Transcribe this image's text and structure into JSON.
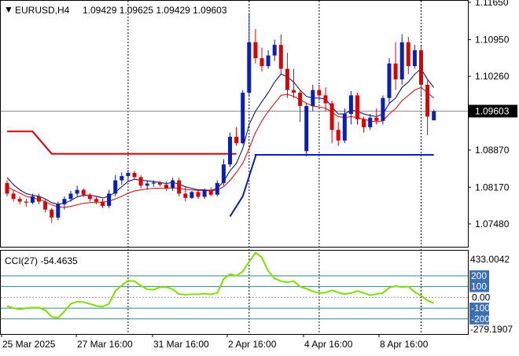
{
  "header": {
    "symbol_label": "EURUSD,H4",
    "ohlc": "1.09429 1.09625 1.09429 1.09603",
    "menu_arrow": "▼"
  },
  "colors": {
    "bull": "#0b1fb0",
    "bear": "#e00000",
    "ma_fast": "#000080",
    "ma_slow": "#e00000",
    "stop_red": "#e00000",
    "stop_blue": "#0b1fb0",
    "cci": "#7fe000",
    "level_line": "#2b8a8a",
    "level_label_bg": "#3a6fb3",
    "grid": "#000000"
  },
  "chart_data": [
    {
      "name": "price",
      "type": "candlestick",
      "y_axis_ticks": [
        "1.11650",
        "1.10950",
        "1.10260",
        "1.09603",
        "1.08870",
        "1.08170",
        "1.07480"
      ],
      "current_price_label": "1.09603",
      "ylim": [
        1.0705,
        1.1168
      ],
      "x_axis_labels": [
        "25 Mar 2025",
        "27 Mar 16:00",
        "31 Mar 16:00",
        "2 Apr 16:00",
        "4 Apr 16:00",
        "8 Apr 16:00"
      ],
      "candles": [
        [
          1.0825,
          1.083,
          1.08,
          1.0805
        ],
        [
          1.0805,
          1.0812,
          1.079,
          1.0795
        ],
        [
          1.0795,
          1.08,
          1.0785,
          1.079
        ],
        [
          1.079,
          1.0795,
          1.078,
          1.0788
        ],
        [
          1.0788,
          1.0805,
          1.0785,
          1.08
        ],
        [
          1.08,
          1.0805,
          1.0785,
          1.079
        ],
        [
          1.079,
          1.0795,
          1.077,
          1.0775
        ],
        [
          1.0775,
          1.0778,
          1.075,
          1.076
        ],
        [
          1.076,
          1.079,
          1.0755,
          1.0785
        ],
        [
          1.0785,
          1.08,
          1.0775,
          1.0795
        ],
        [
          1.0795,
          1.081,
          1.079,
          1.0805
        ],
        [
          1.0805,
          1.082,
          1.08,
          1.0812
        ],
        [
          1.0812,
          1.0815,
          1.0798,
          1.0803
        ],
        [
          1.0803,
          1.0806,
          1.079,
          1.0795
        ],
        [
          1.0795,
          1.08,
          1.0785,
          1.079
        ],
        [
          1.079,
          1.0795,
          1.0778,
          1.0782
        ],
        [
          1.0782,
          1.0812,
          1.0778,
          1.0805
        ],
        [
          1.0805,
          1.084,
          1.08,
          1.083
        ],
        [
          1.083,
          1.0845,
          1.0822,
          1.0838
        ],
        [
          1.0838,
          1.085,
          1.083,
          1.0844
        ],
        [
          1.0844,
          1.0848,
          1.0832,
          1.0836
        ],
        [
          1.0836,
          1.084,
          1.0815,
          1.082
        ],
        [
          1.082,
          1.083,
          1.0812,
          1.0824
        ],
        [
          1.0824,
          1.083,
          1.0818,
          1.0826
        ],
        [
          1.0826,
          1.0829,
          1.0818,
          1.0822
        ],
        [
          1.0822,
          1.0828,
          1.081,
          1.0815
        ],
        [
          1.0815,
          1.0835,
          1.081,
          1.083
        ],
        [
          1.083,
          1.0835,
          1.08,
          1.0805
        ],
        [
          1.0805,
          1.0818,
          1.079,
          1.0797
        ],
        [
          1.0797,
          1.081,
          1.0795,
          1.0808
        ],
        [
          1.0808,
          1.0812,
          1.0795,
          1.0799
        ],
        [
          1.0799,
          1.0815,
          1.0795,
          1.0812
        ],
        [
          1.0812,
          1.0817,
          1.08,
          1.0803
        ],
        [
          1.0803,
          1.083,
          1.08,
          1.0825
        ],
        [
          1.0825,
          1.087,
          1.082,
          1.086
        ],
        [
          1.086,
          1.092,
          1.0855,
          1.0912
        ],
        [
          1.0912,
          1.093,
          1.0895,
          1.09
        ],
        [
          1.09,
          1.1,
          1.0898,
          1.0995
        ],
        [
          1.0995,
          1.1145,
          1.099,
          1.109
        ],
        [
          1.109,
          1.1115,
          1.105,
          1.106
        ],
        [
          1.106,
          1.108,
          1.1035,
          1.1045
        ],
        [
          1.1045,
          1.1075,
          1.104,
          1.1065
        ],
        [
          1.1065,
          1.1095,
          1.1055,
          1.1085
        ],
        [
          1.1085,
          1.1105,
          1.103,
          1.104
        ],
        [
          1.104,
          1.107,
          1.0985,
          1.1
        ],
        [
          1.1,
          1.104,
          1.0985,
          1.0995
        ],
        [
          1.0995,
          1.1,
          1.094,
          1.097
        ],
        [
          1.0885,
          1.0975,
          1.0875,
          1.097
        ],
        [
          1.097,
          1.101,
          1.096,
          1.1
        ],
        [
          1.1,
          1.101,
          1.098,
          1.099
        ],
        [
          1.099,
          1.1005,
          1.096,
          1.0975
        ],
        [
          1.0975,
          1.098,
          1.09,
          1.0925
        ],
        [
          1.0925,
          1.094,
          1.0895,
          1.0905
        ],
        [
          1.0905,
          1.0965,
          1.09,
          1.0955
        ],
        [
          1.0955,
          1.0998,
          1.0935,
          1.099
        ],
        [
          1.099,
          1.0995,
          1.0935,
          1.0945
        ],
        [
          1.0945,
          1.095,
          1.092,
          1.093
        ],
        [
          1.093,
          1.0955,
          1.0925,
          1.0948
        ],
        [
          1.0948,
          1.0965,
          1.0935,
          1.0942
        ],
        [
          1.0942,
          1.099,
          1.0935,
          1.0985
        ],
        [
          1.0985,
          1.106,
          1.0975,
          1.105
        ],
        [
          1.105,
          1.109,
          1.1,
          1.102
        ],
        [
          1.102,
          1.1105,
          1.101,
          1.109
        ],
        [
          1.109,
          1.11,
          1.103,
          1.1045
        ],
        [
          1.1045,
          1.1085,
          1.104,
          1.1075
        ],
        [
          1.1075,
          1.1082,
          1.099,
          1.101
        ],
        [
          1.101,
          1.1018,
          1.0915,
          1.095
        ],
        [
          1.0943,
          1.0963,
          1.0943,
          1.096
        ]
      ],
      "ma_fast": [
        1.0835,
        1.0822,
        1.0812,
        1.0805,
        1.0802,
        1.08,
        1.0795,
        1.0788,
        1.0785,
        1.0787,
        1.0792,
        1.0799,
        1.0802,
        1.0802,
        1.08,
        1.0797,
        1.08,
        1.0808,
        1.0818,
        1.0828,
        1.0832,
        1.083,
        1.0829,
        1.0828,
        1.0826,
        1.0824,
        1.0826,
        1.0823,
        1.0818,
        1.0815,
        1.0812,
        1.0812,
        1.0811,
        1.0815,
        1.0828,
        1.0848,
        1.0862,
        1.089,
        1.0935,
        1.096,
        1.0978,
        1.0995,
        1.1015,
        1.103,
        1.1025,
        1.1015,
        1.1,
        1.0988,
        1.0985,
        1.0985,
        1.0983,
        1.0968,
        1.0955,
        1.0955,
        1.0962,
        1.096,
        1.0955,
        1.0952,
        1.095,
        1.0955,
        1.0975,
        1.0985,
        1.1005,
        1.1015,
        1.103,
        1.104,
        1.102,
        1.1005
      ],
      "ma_slow": [
        1.0818,
        1.0812,
        1.0806,
        1.08,
        1.0797,
        1.0794,
        1.079,
        1.0784,
        1.078,
        1.0779,
        1.0781,
        1.0784,
        1.0787,
        1.0788,
        1.0789,
        1.0789,
        1.0791,
        1.0795,
        1.08,
        1.0806,
        1.081,
        1.0812,
        1.0814,
        1.0815,
        1.0815,
        1.0815,
        1.0816,
        1.0815,
        1.0813,
        1.0812,
        1.0811,
        1.0811,
        1.081,
        1.0812,
        1.0818,
        1.083,
        1.0845,
        1.0862,
        1.089,
        1.092,
        1.0942,
        1.096,
        1.0975,
        1.099,
        1.0992,
        1.0988,
        1.0982,
        1.0975,
        1.097,
        1.0968,
        1.0966,
        1.0958,
        1.095,
        1.0948,
        1.095,
        1.0948,
        1.0945,
        1.0942,
        1.094,
        1.0942,
        1.0955,
        1.0965,
        1.098,
        1.099,
        1.1,
        1.1005,
        1.0995,
        1.0985
      ],
      "stop_red": [
        [
          0,
          1.0922
        ],
        [
          4,
          1.0922
        ],
        [
          7,
          1.088
        ],
        [
          35,
          1.088
        ],
        [
          36,
          1.088
        ]
      ],
      "stop_blue": [
        [
          35,
          1.0762
        ],
        [
          37,
          1.08
        ],
        [
          39,
          1.0875
        ],
        [
          39,
          1.0878
        ],
        [
          67,
          1.0878
        ]
      ]
    },
    {
      "name": "CCI(27)",
      "type": "line",
      "label": "CCI(27) -54.4635",
      "ylim": [
        -340,
        433
      ],
      "top_label": "433.0042",
      "bottom_label": "-279.1907",
      "levels": [
        200,
        100,
        0,
        -100,
        -200
      ],
      "level_labels": [
        "200",
        "100",
        "0.00",
        "-100",
        "-200"
      ],
      "values": [
        -80,
        -100,
        -110,
        -100,
        -95,
        -95,
        -120,
        -180,
        -190,
        -130,
        -60,
        -40,
        -45,
        -60,
        -80,
        -85,
        -60,
        60,
        110,
        155,
        150,
        110,
        75,
        70,
        95,
        95,
        75,
        30,
        25,
        28,
        28,
        35,
        28,
        40,
        170,
        215,
        200,
        240,
        330,
        415,
        370,
        245,
        175,
        150,
        140,
        150,
        100,
        80,
        55,
        40,
        45,
        65,
        45,
        30,
        40,
        60,
        40,
        20,
        30,
        40,
        90,
        105,
        95,
        100,
        50,
        15,
        -30,
        -54.46
      ]
    }
  ]
}
